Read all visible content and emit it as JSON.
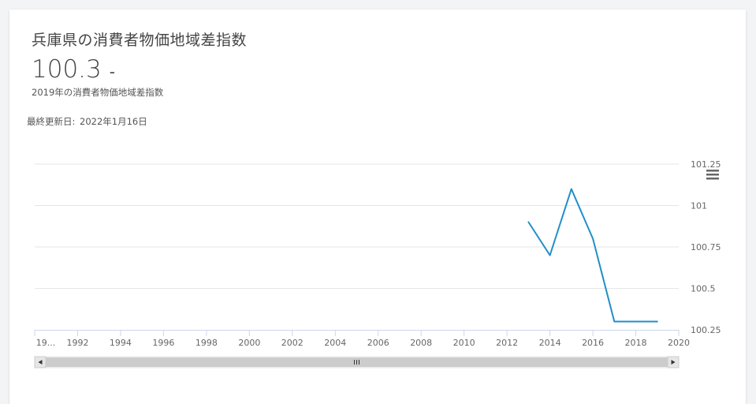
{
  "header": {
    "title": "兵庫県の消費者物価地域差指数",
    "value": "100.3",
    "unit": "-",
    "value_caption": "2019年の消費者物価地域差指数",
    "updated_label": "最終更新日:",
    "updated_date": "2022年1月16日"
  },
  "chart_data": {
    "type": "line",
    "title": "兵庫県の消費者物価地域差指数",
    "xlabel": "",
    "ylabel": "",
    "x_ticks": [
      "19...",
      "1992",
      "1994",
      "1996",
      "1998",
      "2000",
      "2002",
      "2004",
      "2006",
      "2008",
      "2010",
      "2012",
      "2014",
      "2016",
      "2018",
      "2020"
    ],
    "y_ticks": [
      "101.25",
      "101",
      "100.75",
      "100.5",
      "100.25"
    ],
    "xlim": [
      1990,
      2020
    ],
    "ylim": [
      100.25,
      101.25
    ],
    "series": [
      {
        "name": "消費者物価地域差指数",
        "color": "#1f8fc8",
        "x": [
          2013,
          2014,
          2015,
          2016,
          2017,
          2018,
          2019
        ],
        "values": [
          100.9,
          100.7,
          101.1,
          100.8,
          100.3,
          100.3,
          100.3
        ]
      }
    ],
    "grid": true
  },
  "controls": {
    "menu_icon": "hamburger-menu-icon",
    "scroll_left_icon": "arrow-left-icon",
    "scroll_right_icon": "arrow-right-icon",
    "scroll_grip_icon": "grip-icon"
  }
}
